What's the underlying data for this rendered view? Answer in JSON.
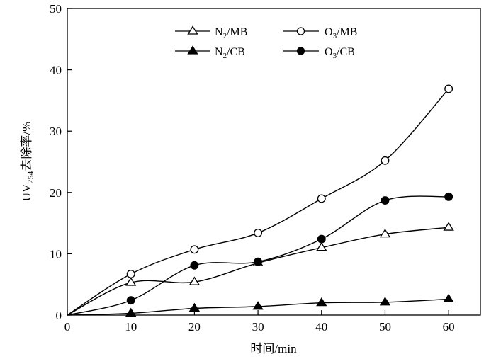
{
  "chart_data": {
    "type": "line",
    "title": "",
    "xlabel": "时间/min",
    "ylabel_main": "UV",
    "ylabel_sub": "254",
    "ylabel_rest": "去除率/%",
    "xlim": [
      0,
      65
    ],
    "ylim": [
      0,
      50
    ],
    "xticks": [
      0,
      10,
      20,
      30,
      40,
      50,
      60
    ],
    "yticks": [
      0,
      10,
      20,
      30,
      40,
      50
    ],
    "grid": false,
    "legend_position": "top-center",
    "x": [
      0,
      10,
      20,
      30,
      40,
      50,
      60
    ],
    "series": [
      {
        "key": "n2mb",
        "name_main": "N",
        "name_sub": "2",
        "name_rest": "/MB",
        "marker": "triangle",
        "filled": false,
        "values": [
          0,
          5.3,
          5.4,
          8.5,
          11.0,
          13.2,
          14.3
        ]
      },
      {
        "key": "o3mb",
        "name_main": "O",
        "name_sub": "3",
        "name_rest": "/MB",
        "marker": "circle",
        "filled": false,
        "values": [
          0,
          6.7,
          10.7,
          13.4,
          19.0,
          25.2,
          36.9
        ]
      },
      {
        "key": "n2cb",
        "name_main": "N",
        "name_sub": "2",
        "name_rest": "/CB",
        "marker": "triangle",
        "filled": true,
        "values": [
          0,
          0.3,
          1.1,
          1.4,
          2.0,
          2.1,
          2.6
        ]
      },
      {
        "key": "o3cb",
        "name_main": "O",
        "name_sub": "3",
        "name_rest": "/CB",
        "marker": "circle",
        "filled": true,
        "values": [
          0,
          2.4,
          8.1,
          8.7,
          12.4,
          18.7,
          19.3
        ]
      }
    ]
  }
}
